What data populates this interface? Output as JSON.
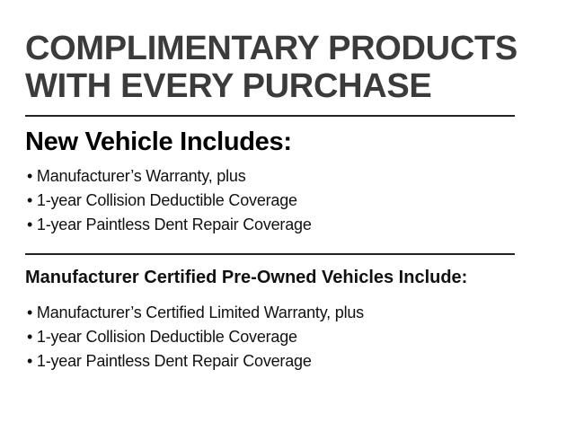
{
  "title": {
    "line1": "COMPLIMENTARY PRODUCTS",
    "line2": "WITH EVERY PURCHASE"
  },
  "new_vehicle": {
    "heading": "New Vehicle Includes:",
    "items": [
      "• Manufacturer’s Warranty, plus",
      "• 1-year Collision Deductible Coverage",
      "• 1-year Paintless Dent Repair Coverage"
    ]
  },
  "cpo": {
    "heading": "Manufacturer Certified Pre-Owned Vehicles Include:",
    "items": [
      "• Manufacturer’s Certified Limited Warranty, plus",
      "• 1-year Collision Deductible Coverage",
      "• 1-year Paintless Dent Repair Coverage"
    ]
  }
}
